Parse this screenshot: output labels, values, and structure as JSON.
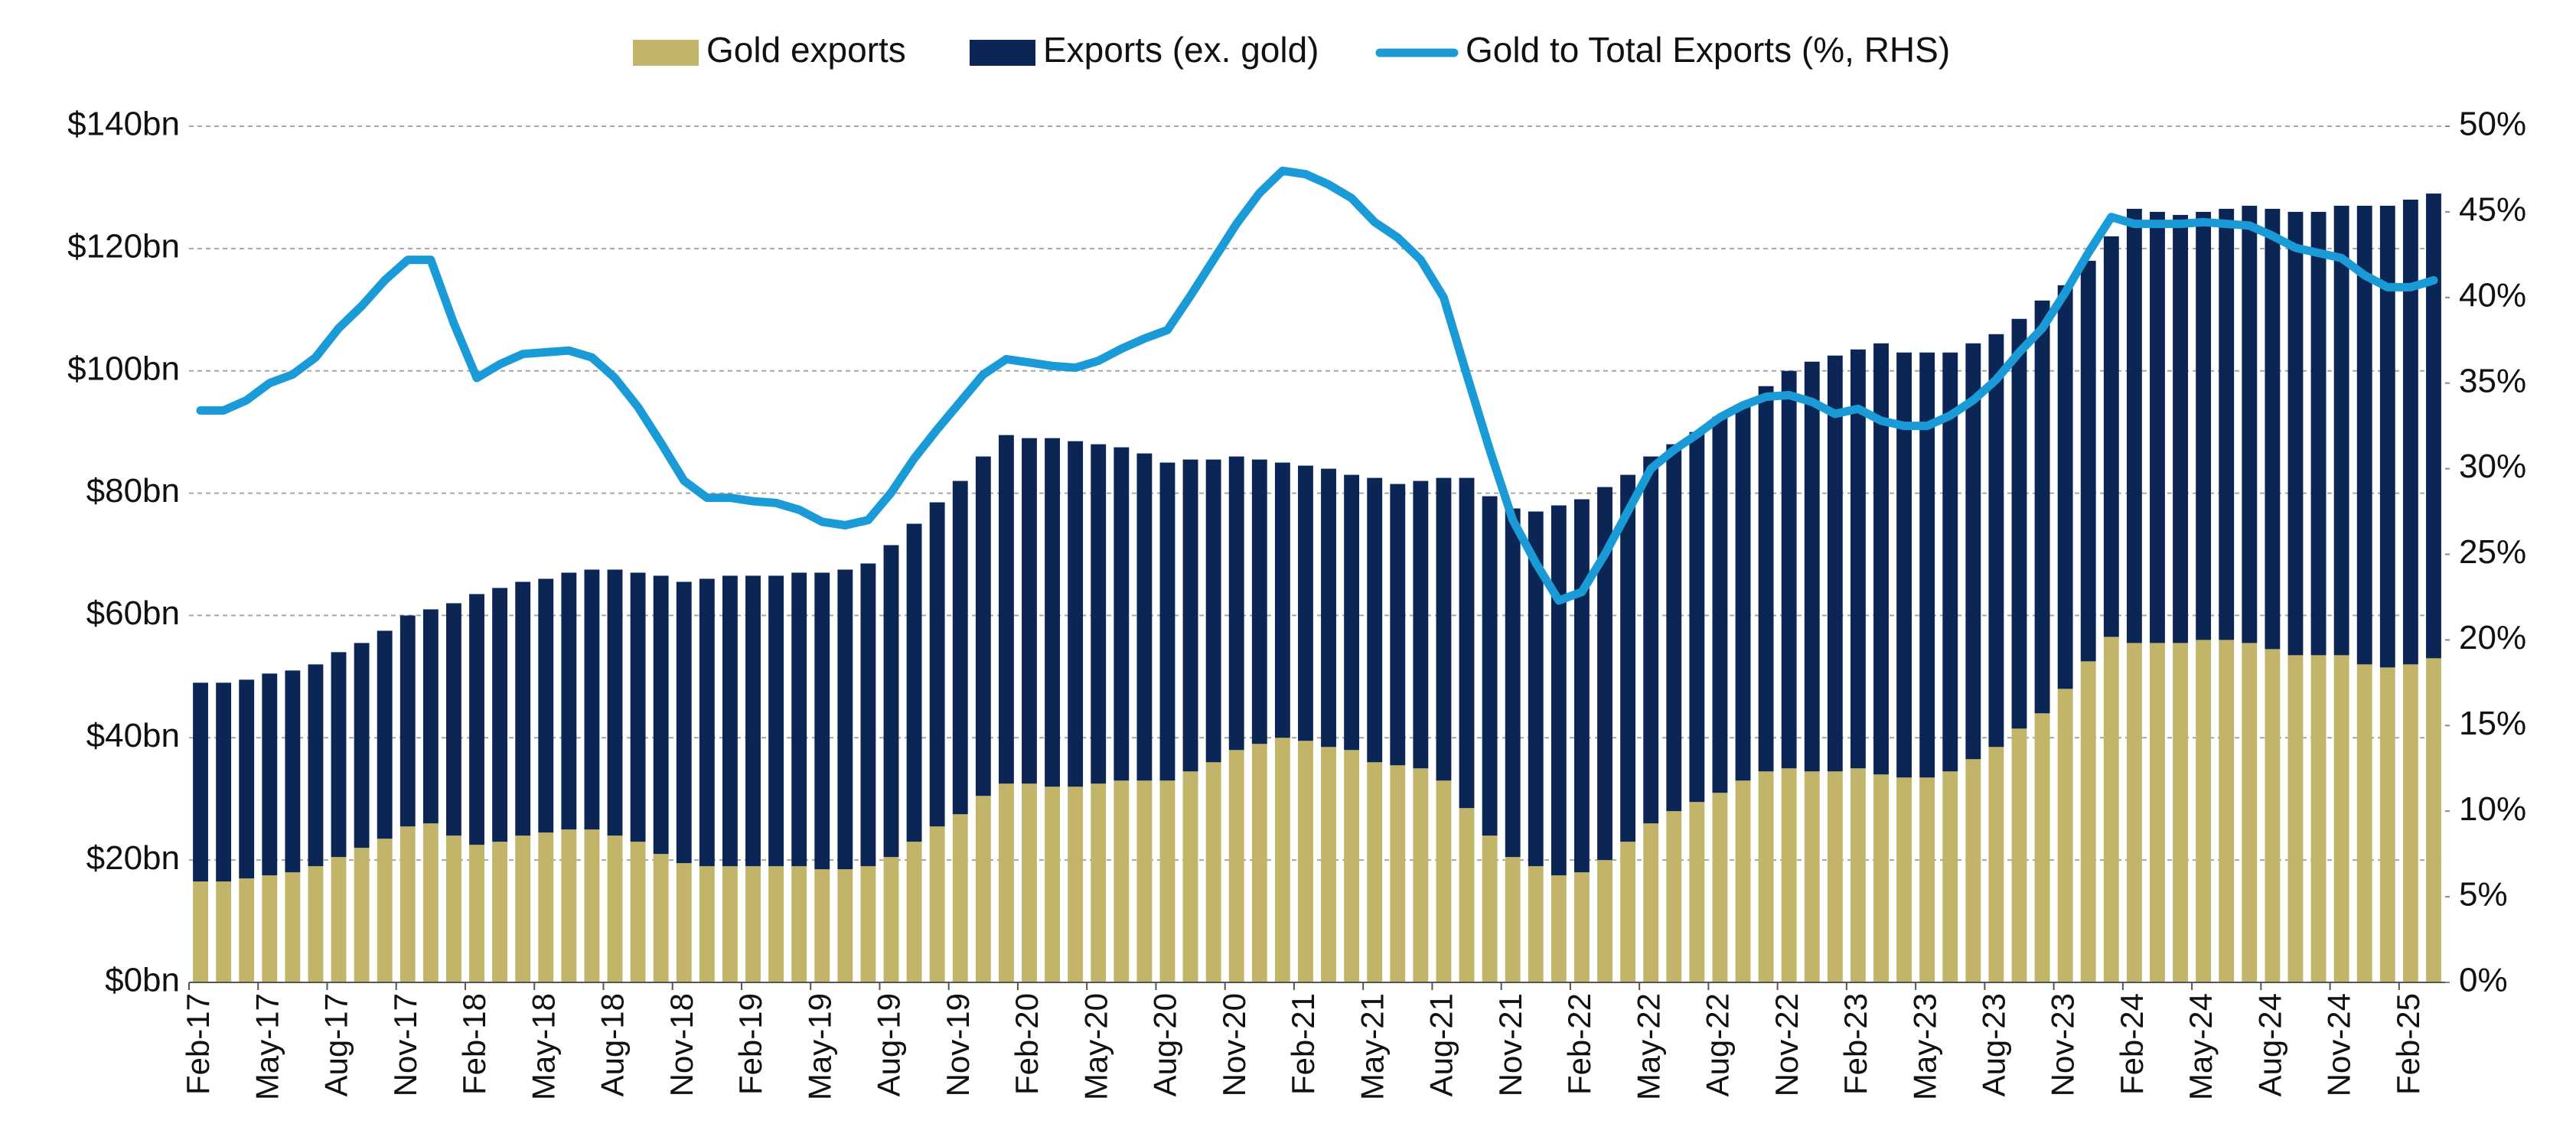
{
  "chart_data": {
    "type": "bar",
    "stacked": true,
    "categories": [
      "Feb-17",
      null,
      null,
      "May-17",
      null,
      null,
      "Aug-17",
      null,
      null,
      "Nov-17",
      null,
      null,
      "Feb-18",
      null,
      null,
      "May-18",
      null,
      null,
      "Aug-18",
      null,
      null,
      "Nov-18",
      null,
      null,
      "Feb-19",
      null,
      null,
      "May-19",
      null,
      null,
      "Aug-19",
      null,
      null,
      "Nov-19",
      null,
      null,
      "Feb-20",
      null,
      null,
      "May-20",
      null,
      null,
      "Aug-20",
      null,
      null,
      "Nov-20",
      null,
      null,
      "Feb-21",
      null,
      null,
      "May-21",
      null,
      null,
      "Aug-21",
      null,
      null,
      "Nov-21",
      null,
      null,
      "Feb-22",
      null,
      null,
      "May-22",
      null,
      null,
      "Aug-22",
      null,
      null,
      "Nov-22",
      null,
      null,
      "Feb-23",
      null,
      null,
      "May-23",
      null,
      null,
      "Aug-23",
      null,
      null,
      "Nov-23",
      null,
      null,
      "Feb-24",
      null,
      null,
      "May-24",
      null,
      null,
      "Aug-24",
      null,
      null,
      "Nov-24",
      null,
      null,
      "Feb-25",
      null
    ],
    "series": [
      {
        "name": "Gold exports",
        "color": "#c2b56a",
        "type": "bar",
        "values": [
          16.5,
          16.5,
          17,
          17.5,
          18,
          19,
          20.5,
          22,
          23.5,
          25.5,
          26,
          24,
          22.5,
          23,
          24,
          24.5,
          25,
          25,
          24,
          23,
          21,
          19.5,
          19,
          19,
          19,
          19,
          19,
          18.5,
          18.5,
          19,
          20.5,
          23,
          25.5,
          27.5,
          30.5,
          32.5,
          32.5,
          32,
          32,
          32.5,
          33,
          33,
          33,
          34.5,
          36,
          38,
          39,
          40,
          39.5,
          38.5,
          38,
          36,
          35.5,
          35,
          33,
          28.5,
          24,
          20.5,
          19,
          17.5,
          18,
          20,
          23,
          26,
          28,
          29.5,
          31,
          33,
          34.5,
          35,
          34.5,
          34.5,
          35,
          34,
          33.5,
          33.5,
          34.5,
          36.5,
          38.5,
          41.5,
          44,
          48,
          52.5,
          56.5,
          55.5,
          55.5,
          55.5,
          56,
          56,
          55.5,
          54.5,
          53.5,
          53.5,
          53.5,
          52,
          51.5,
          52,
          53
        ]
      },
      {
        "name": "Exports (ex. gold)",
        "color": "#0b2554",
        "type": "bar",
        "values": [
          32.5,
          32.5,
          32.5,
          33,
          33,
          33,
          33.5,
          33.5,
          34,
          34.5,
          35,
          38,
          41,
          41.5,
          41.5,
          41.5,
          42,
          42.5,
          43.5,
          44,
          45.5,
          46,
          47,
          47.5,
          47.5,
          47.5,
          48,
          48.5,
          49,
          49.5,
          51,
          52,
          53,
          54.5,
          55.5,
          57,
          56.5,
          57,
          56.5,
          55.5,
          54.5,
          53.5,
          52,
          51,
          49.5,
          48,
          46.5,
          45,
          45,
          45.5,
          45,
          46.5,
          46,
          47,
          49.5,
          54,
          55.5,
          57,
          58,
          60.5,
          61,
          61,
          60,
          60,
          60,
          60.5,
          61.5,
          61.5,
          63,
          65,
          67,
          68,
          68.5,
          70.5,
          69.5,
          69.5,
          68.5,
          68,
          67.5,
          67,
          67.5,
          66,
          65.5,
          65.5,
          71,
          70.5,
          70,
          70,
          70.5,
          71.5,
          72,
          72.5,
          72.5,
          73.5,
          75,
          75.5,
          76,
          76
        ]
      },
      {
        "name": "Gold to Total Exports (%, RHS)",
        "color": "#1a9ad6",
        "type": "line",
        "axis": "y2",
        "values": [
          33.4,
          33.4,
          34,
          35,
          35.5,
          36.5,
          38.2,
          39.5,
          41,
          42.2,
          42.2,
          38.5,
          35.3,
          36.1,
          36.7,
          36.8,
          36.9,
          36.5,
          35.3,
          33.6,
          31.5,
          29.3,
          28.3,
          28.3,
          28.1,
          28,
          27.6,
          26.9,
          26.7,
          27,
          28.6,
          30.6,
          32.3,
          33.9,
          35.5,
          36.4,
          36.2,
          36,
          35.9,
          36.3,
          37,
          37.6,
          38.1,
          40.1,
          42.2,
          44.3,
          46.1,
          47.4,
          47.2,
          46.6,
          45.8,
          44.4,
          43.5,
          42.2,
          40,
          35.5,
          31.1,
          27,
          24.5,
          22.3,
          22.8,
          25,
          27.5,
          30,
          31.1,
          32,
          33,
          33.7,
          34.2,
          34.3,
          33.9,
          33.2,
          33.5,
          32.8,
          32.5,
          32.5,
          33.1,
          34,
          35.2,
          36.8,
          38.2,
          40.3,
          42.6,
          44.7,
          44.3,
          44.3,
          44.3,
          44.4,
          44.3,
          44.2,
          43.6,
          42.9,
          42.6,
          42.3,
          41.3,
          40.6,
          40.6,
          41
        ]
      }
    ],
    "ylim": [
      0,
      140
    ],
    "yticks": [
      {
        "value": 0,
        "label": "$0bn"
      },
      {
        "value": 20,
        "label": "$20bn"
      },
      {
        "value": 40,
        "label": "$40bn"
      },
      {
        "value": 60,
        "label": "$60bn"
      },
      {
        "value": 80,
        "label": "$80bn"
      },
      {
        "value": 100,
        "label": "$100bn"
      },
      {
        "value": 120,
        "label": "$120bn"
      },
      {
        "value": 140,
        "label": "$140bn"
      }
    ],
    "y2lim": [
      0,
      50
    ],
    "y2ticks": [
      {
        "value": 0,
        "label": "0%"
      },
      {
        "value": 5,
        "label": "5%"
      },
      {
        "value": 10,
        "label": "10%"
      },
      {
        "value": 15,
        "label": "15%"
      },
      {
        "value": 20,
        "label": "20%"
      },
      {
        "value": 25,
        "label": "25%"
      },
      {
        "value": 30,
        "label": "30%"
      },
      {
        "value": 35,
        "label": "35%"
      },
      {
        "value": 40,
        "label": "40%"
      },
      {
        "value": 45,
        "label": "45%"
      },
      {
        "value": 50,
        "label": "50%"
      }
    ],
    "grid": true,
    "legend": "top"
  }
}
